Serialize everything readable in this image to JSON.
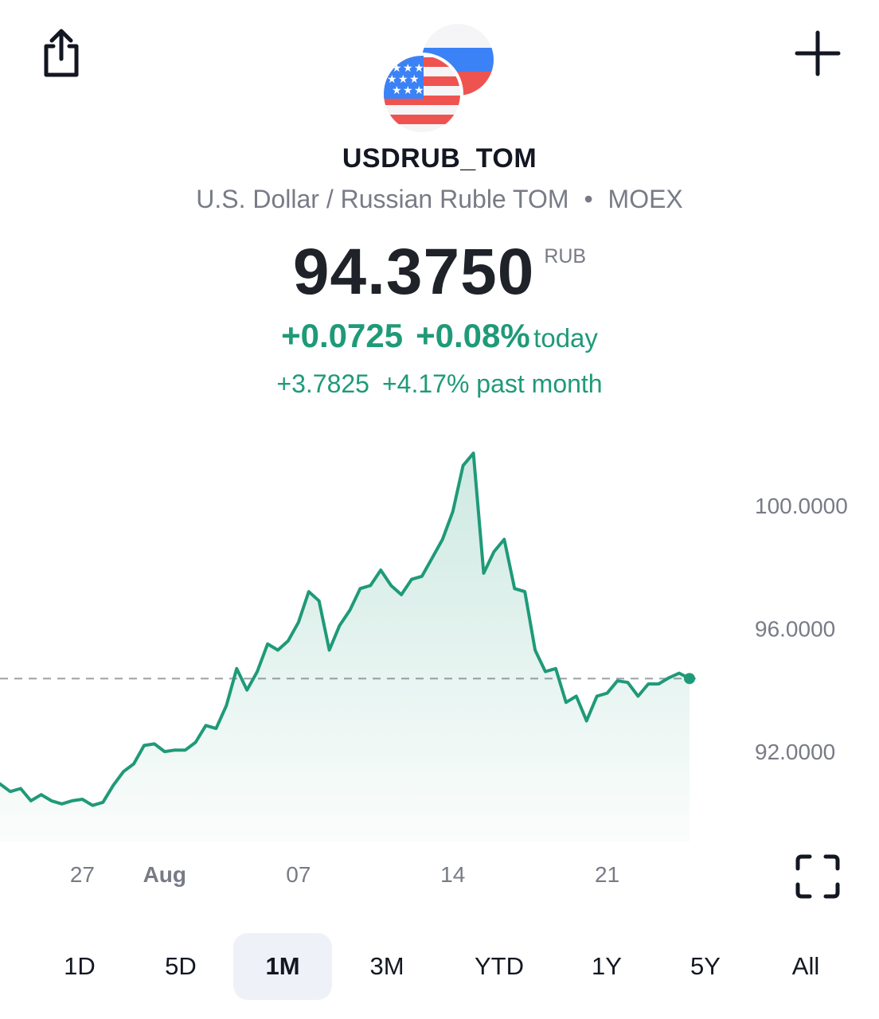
{
  "header": {
    "share_icon": "share-icon",
    "add_icon": "plus-icon",
    "symbol": "USDRUB_TOM",
    "description": "U.S. Dollar / Russian Ruble TOM",
    "separator": "•",
    "exchange": "MOEX"
  },
  "quote": {
    "price": "94.3750",
    "currency": "RUB",
    "change_today": "+0.0725",
    "change_today_pct": "+0.08%",
    "today_label": "today",
    "change_month": "+3.7825",
    "change_month_pct": "+4.17%",
    "month_label": "past month"
  },
  "colors": {
    "accent_green": "#1f9a78",
    "muted_text": "#787b86",
    "flag_blue": "#3b82f6",
    "flag_red": "#ef5350"
  },
  "chart_data": {
    "type": "area",
    "y_tick_labels": [
      "100.0000",
      "96.0000",
      "92.0000"
    ],
    "y_ticks": [
      100,
      96,
      92
    ],
    "x_tick_labels": [
      "27",
      "Aug",
      "07",
      "14",
      "21"
    ],
    "x_tick_index": [
      8,
      16,
      29,
      44,
      59
    ],
    "reference_line": 94.375,
    "series": [
      {
        "values": [
          90.95,
          90.7,
          90.8,
          90.4,
          90.6,
          90.4,
          90.3,
          90.4,
          90.45,
          90.25,
          90.35,
          90.9,
          91.35,
          91.6,
          92.2,
          92.25,
          92.0,
          92.05,
          92.05,
          92.3,
          92.85,
          92.75,
          93.5,
          94.7,
          94.0,
          94.6,
          95.5,
          95.3,
          95.6,
          96.2,
          97.2,
          96.9,
          95.3,
          96.1,
          96.6,
          97.3,
          97.4,
          97.9,
          97.4,
          97.1,
          97.6,
          97.7,
          98.3,
          98.9,
          99.8,
          101.3,
          101.7,
          97.8,
          98.5,
          98.9,
          97.3,
          97.2,
          95.3,
          94.6,
          94.7,
          93.6,
          93.8,
          93.0,
          93.8,
          93.9,
          94.3,
          94.25,
          93.8,
          94.2,
          94.2,
          94.4,
          94.55,
          94.375
        ]
      }
    ]
  },
  "periods": {
    "items": [
      "1D",
      "5D",
      "1M",
      "3M",
      "YTD",
      "1Y",
      "5Y",
      "All"
    ],
    "active": "1M"
  },
  "fullscreen_icon": "fullscreen-icon"
}
